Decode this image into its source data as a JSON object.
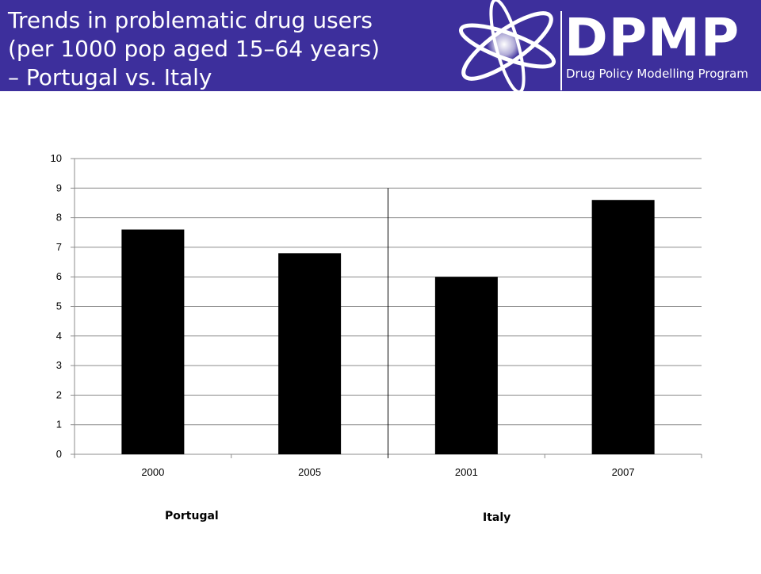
{
  "header": {
    "title_lines": [
      "Trends in problematic drug users",
      "(per 1000 pop aged 15–64 years)",
      " – Portugal vs. Italy"
    ],
    "background_color": "#3d2f9c"
  },
  "logo": {
    "wordmark": "DPMP",
    "subtitle": "Drug Policy Modelling Program",
    "icon": "orbit-atom-icon"
  },
  "chart_data": {
    "type": "bar",
    "categories": [
      "2000",
      "2005",
      "2001",
      "2007"
    ],
    "values": [
      7.6,
      6.8,
      6.0,
      8.6
    ],
    "groups": [
      {
        "label": "Portugal",
        "categories": [
          "2000",
          "2005"
        ]
      },
      {
        "label": "Italy",
        "categories": [
          "2001",
          "2007"
        ]
      }
    ],
    "title": "",
    "xlabel": "",
    "ylabel": "",
    "ylim": [
      0,
      10
    ],
    "yticks": [
      "0",
      "1",
      "2",
      "3",
      "4",
      "5",
      "6",
      "7",
      "8",
      "9",
      "10"
    ],
    "grid": true,
    "legend": "none",
    "bar_color": "#000000"
  }
}
